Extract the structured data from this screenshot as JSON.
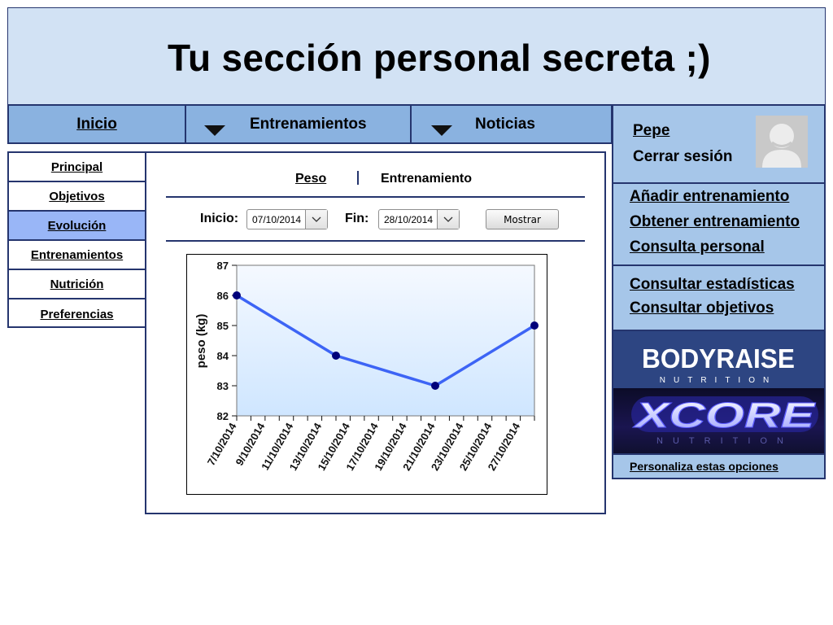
{
  "header": {
    "title": "Tu sección personal secreta ;)"
  },
  "topnav": {
    "items": [
      {
        "label": "Inicio"
      },
      {
        "label": "Entrenamientos"
      },
      {
        "label": "Noticias"
      }
    ]
  },
  "sidebar": {
    "items": [
      {
        "label": "Principal"
      },
      {
        "label": "Objetivos"
      },
      {
        "label": "Evolución",
        "active": true
      },
      {
        "label": "Entrenamientos"
      },
      {
        "label": "Nutrición"
      },
      {
        "label": "Preferencias"
      }
    ]
  },
  "main": {
    "tabs": [
      {
        "label": "Peso"
      },
      {
        "label": "Entrenamiento"
      }
    ],
    "filters": {
      "start_label": "Inicio:",
      "start_value": "07/10/2014",
      "end_label": "Fin:",
      "end_value": "28/10/2014",
      "button_label": "Mostrar"
    }
  },
  "user": {
    "name": "Pepe",
    "logout_label": "Cerrar sesión"
  },
  "actions": {
    "links": [
      {
        "label": "Añadir entrenamiento"
      },
      {
        "label": "Obtener entrenamiento"
      },
      {
        "label": "Consulta personal"
      }
    ]
  },
  "stats": {
    "links": [
      {
        "label": "Consultar estadísticas"
      },
      {
        "label": "Consultar objetivos"
      }
    ]
  },
  "ads": {
    "bodyraise": {
      "name": "BODYRAISE",
      "sub": "NUTRITION"
    },
    "xcore": {
      "name": "XCORE",
      "sub": "NUTRITION"
    },
    "personalize_label": "Personaliza estas opciones"
  },
  "colors": {
    "header_bg": "#d2e2f4",
    "nav_bg": "#8ab2e0",
    "panel_bg": "#a6c6e9",
    "border": "#25356e",
    "line": "#3d64f5",
    "marker": "#00007a"
  },
  "chart_data": {
    "type": "line",
    "ylabel": "peso (kg)",
    "ylim": [
      82,
      87
    ],
    "yticks": [
      82,
      83,
      84,
      85,
      86,
      87
    ],
    "x_tick_labels": [
      "7/10/2014",
      "9/10/2014",
      "11/10/2014",
      "13/10/2014",
      "15/10/2014",
      "17/10/2014",
      "19/10/2014",
      "21/10/2014",
      "23/10/2014",
      "25/10/2014",
      "27/10/2014"
    ],
    "xlim": [
      "2014-10-07",
      "2014-10-28"
    ],
    "points": [
      {
        "x": "2014-10-07",
        "y": 86
      },
      {
        "x": "2014-10-14",
        "y": 84
      },
      {
        "x": "2014-10-21",
        "y": 83
      },
      {
        "x": "2014-10-28",
        "y": 85
      }
    ]
  }
}
